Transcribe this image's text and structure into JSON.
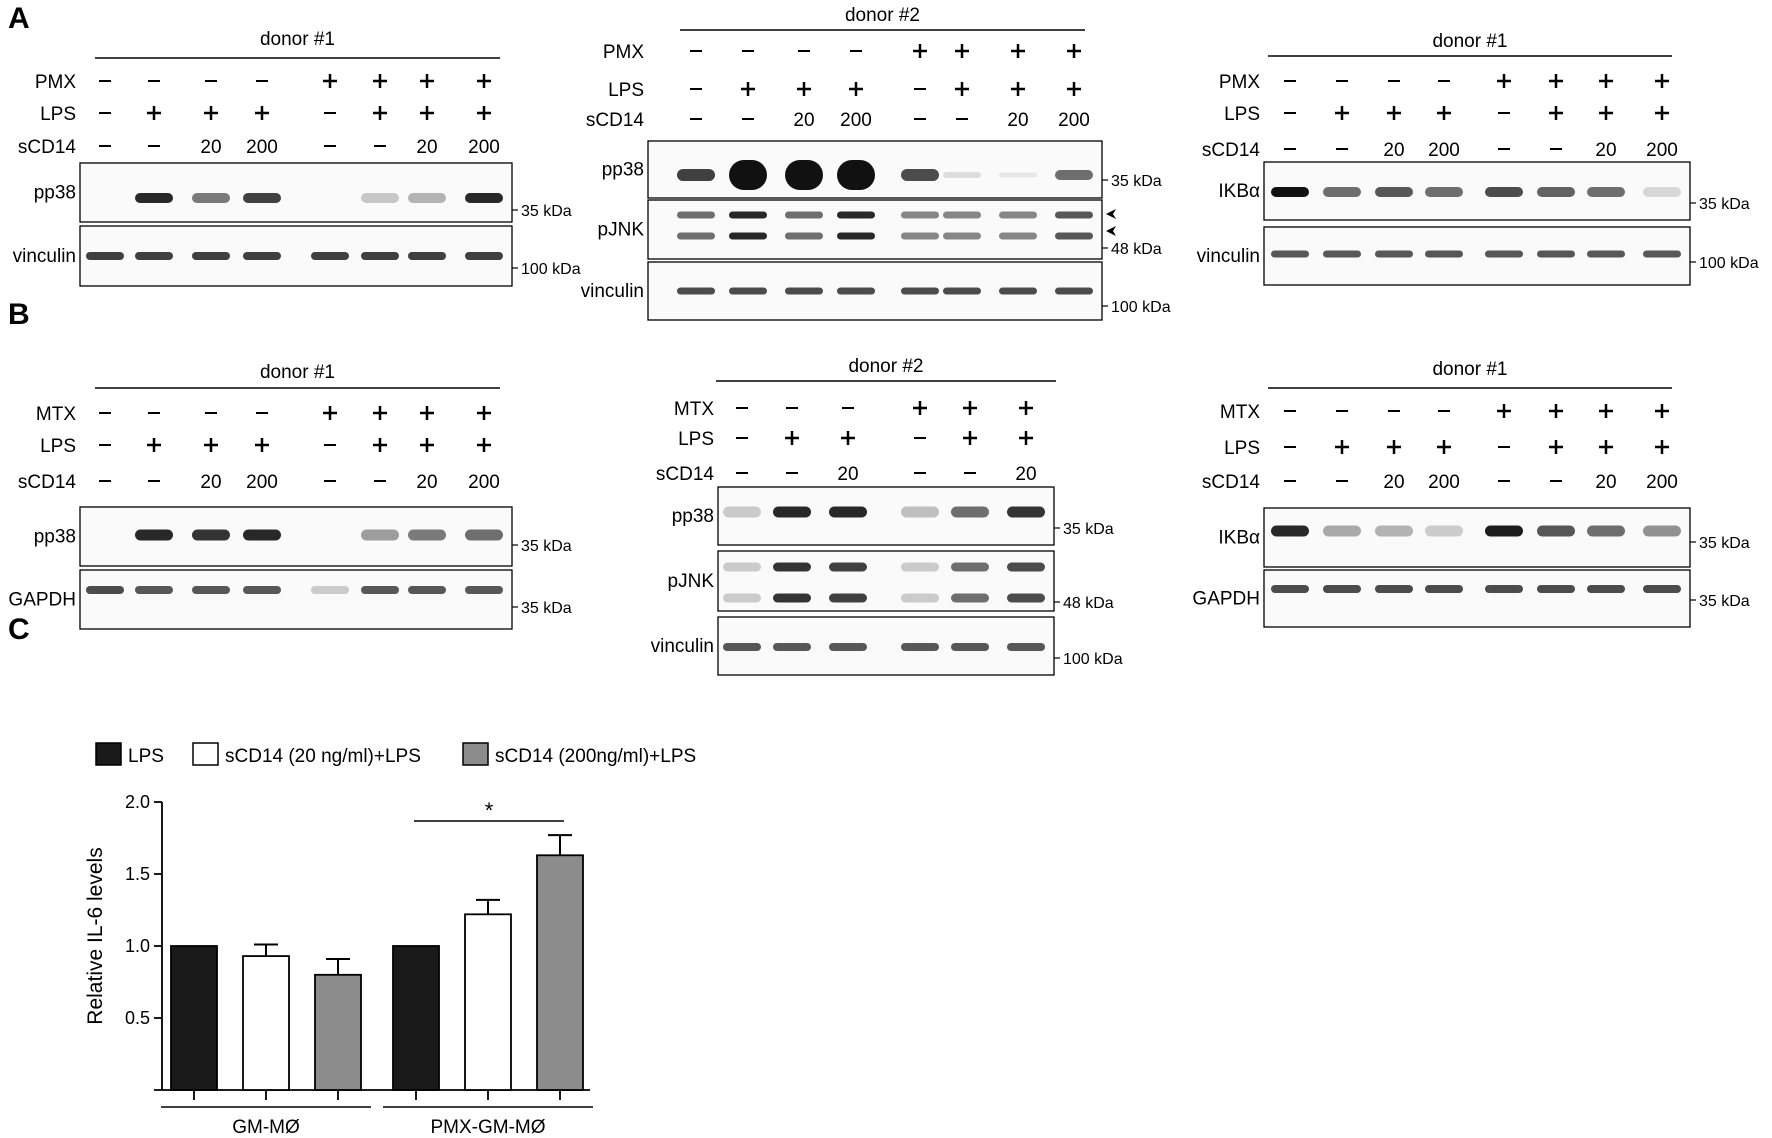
{
  "panels": {
    "A": {
      "letter": "A",
      "blots": [
        {
          "donor": "donor #1",
          "rows": [
            {
              "label": "PMX",
              "values": [
                "–",
                "–",
                "–",
                "–",
                "+",
                "+",
                "+",
                "+"
              ]
            },
            {
              "label": "LPS",
              "values": [
                "–",
                "+",
                "+",
                "+",
                "–",
                "+",
                "+",
                "+"
              ]
            },
            {
              "label": "sCD14",
              "values": [
                "–",
                "–",
                "20",
                "200",
                "–",
                "–",
                "20",
                "200"
              ]
            }
          ],
          "strips": [
            {
              "label": "pp38",
              "markers": [
                "35 kDa"
              ]
            },
            {
              "label": "vinculin",
              "markers": [
                "100 kDa"
              ]
            }
          ]
        },
        {
          "donor": "donor #2",
          "rows": [
            {
              "label": "PMX",
              "values": [
                "–",
                "–",
                "–",
                "–",
                "+",
                "+",
                "+",
                "+"
              ]
            },
            {
              "label": "LPS",
              "values": [
                "–",
                "+",
                "+",
                "+",
                "–",
                "+",
                "+",
                "+"
              ]
            },
            {
              "label": "sCD14",
              "values": [
                "–",
                "–",
                "20",
                "200",
                "–",
                "–",
                "20",
                "200"
              ]
            }
          ],
          "strips": [
            {
              "label": "pp38",
              "markers": [
                "35 kDa"
              ]
            },
            {
              "label": "pJNK",
              "markers": [
                "48 kDa"
              ]
            },
            {
              "label": "vinculin",
              "markers": [
                "100 kDa"
              ]
            }
          ]
        },
        {
          "donor": "donor #1",
          "rows": [
            {
              "label": "PMX",
              "values": [
                "–",
                "–",
                "–",
                "–",
                "+",
                "+",
                "+",
                "+"
              ]
            },
            {
              "label": "LPS",
              "values": [
                "–",
                "+",
                "+",
                "+",
                "–",
                "+",
                "+",
                "+"
              ]
            },
            {
              "label": "sCD14",
              "values": [
                "–",
                "–",
                "20",
                "200",
                "–",
                "–",
                "20",
                "200"
              ]
            }
          ],
          "strips": [
            {
              "label": "IKBα",
              "markers": [
                "35 kDa"
              ]
            },
            {
              "label": "vinculin",
              "markers": [
                "100 kDa"
              ]
            }
          ]
        }
      ]
    },
    "B": {
      "letter": "B",
      "blots": [
        {
          "donor": "donor #1",
          "rows": [
            {
              "label": "MTX",
              "values": [
                "–",
                "–",
                "–",
                "–",
                "+",
                "+",
                "+",
                "+"
              ]
            },
            {
              "label": "LPS",
              "values": [
                "–",
                "+",
                "+",
                "+",
                "–",
                "+",
                "+",
                "+"
              ]
            },
            {
              "label": "sCD14",
              "values": [
                "–",
                "–",
                "20",
                "200",
                "–",
                "–",
                "20",
                "200"
              ]
            }
          ],
          "strips": [
            {
              "label": "pp38",
              "markers": [
                "35 kDa"
              ]
            },
            {
              "label": "GAPDH",
              "markers": [
                "35 kDa"
              ]
            }
          ]
        },
        {
          "donor": "donor #2",
          "rows": [
            {
              "label": "MTX",
              "values": [
                "–",
                "–",
                "–",
                "+",
                "+",
                "+"
              ]
            },
            {
              "label": "LPS",
              "values": [
                "–",
                "+",
                "+",
                "–",
                "+",
                "+"
              ]
            },
            {
              "label": "sCD14",
              "values": [
                "–",
                "–",
                "20",
                "–",
                "–",
                "20"
              ]
            }
          ],
          "strips": [
            {
              "label": "pp38",
              "markers": [
                "35 kDa"
              ]
            },
            {
              "label": "pJNK",
              "markers": [
                "48 kDa"
              ]
            },
            {
              "label": "vinculin",
              "markers": [
                "100 kDa"
              ]
            }
          ]
        },
        {
          "donor": "donor #1",
          "rows": [
            {
              "label": "MTX",
              "values": [
                "–",
                "–",
                "–",
                "–",
                "+",
                "+",
                "+",
                "+"
              ]
            },
            {
              "label": "LPS",
              "values": [
                "–",
                "+",
                "+",
                "+",
                "–",
                "+",
                "+",
                "+"
              ]
            },
            {
              "label": "sCD14",
              "values": [
                "–",
                "–",
                "20",
                "200",
                "–",
                "–",
                "20",
                "200"
              ]
            }
          ],
          "strips": [
            {
              "label": "IKBα",
              "markers": [
                "35 kDa"
              ]
            },
            {
              "label": "GAPDH",
              "markers": [
                "35 kDa"
              ]
            }
          ]
        }
      ]
    },
    "C": {
      "letter": "C"
    }
  },
  "chart_data": {
    "type": "bar",
    "groups": [
      "GM-MØ",
      "PMX-GM-MØ"
    ],
    "series": [
      {
        "name": "LPS",
        "values": [
          1.0,
          1.0
        ],
        "errors": [
          0,
          0
        ],
        "color": "#1a1a1a"
      },
      {
        "name": "sCD14 (20 ng/ml)+LPS",
        "values": [
          0.93,
          1.22
        ],
        "errors": [
          0.08,
          0.1
        ],
        "color": "#ffffff"
      },
      {
        "name": "sCD14 (200ng/ml)+LPS",
        "values": [
          0.8,
          1.63
        ],
        "errors": [
          0.11,
          0.14
        ],
        "color": "#8c8c8c"
      }
    ],
    "ylabel": "Relative IL-6 levels",
    "ylim": [
      0,
      2.0
    ],
    "yticks": [
      "0.5",
      "1.0",
      "1.5",
      "2.0"
    ],
    "significance": {
      "label": "*",
      "group": "PMX-GM-MØ",
      "from_series": "LPS",
      "to_series": "sCD14 (200ng/ml)+LPS"
    },
    "legend_position": "top-left",
    "grid": false
  }
}
